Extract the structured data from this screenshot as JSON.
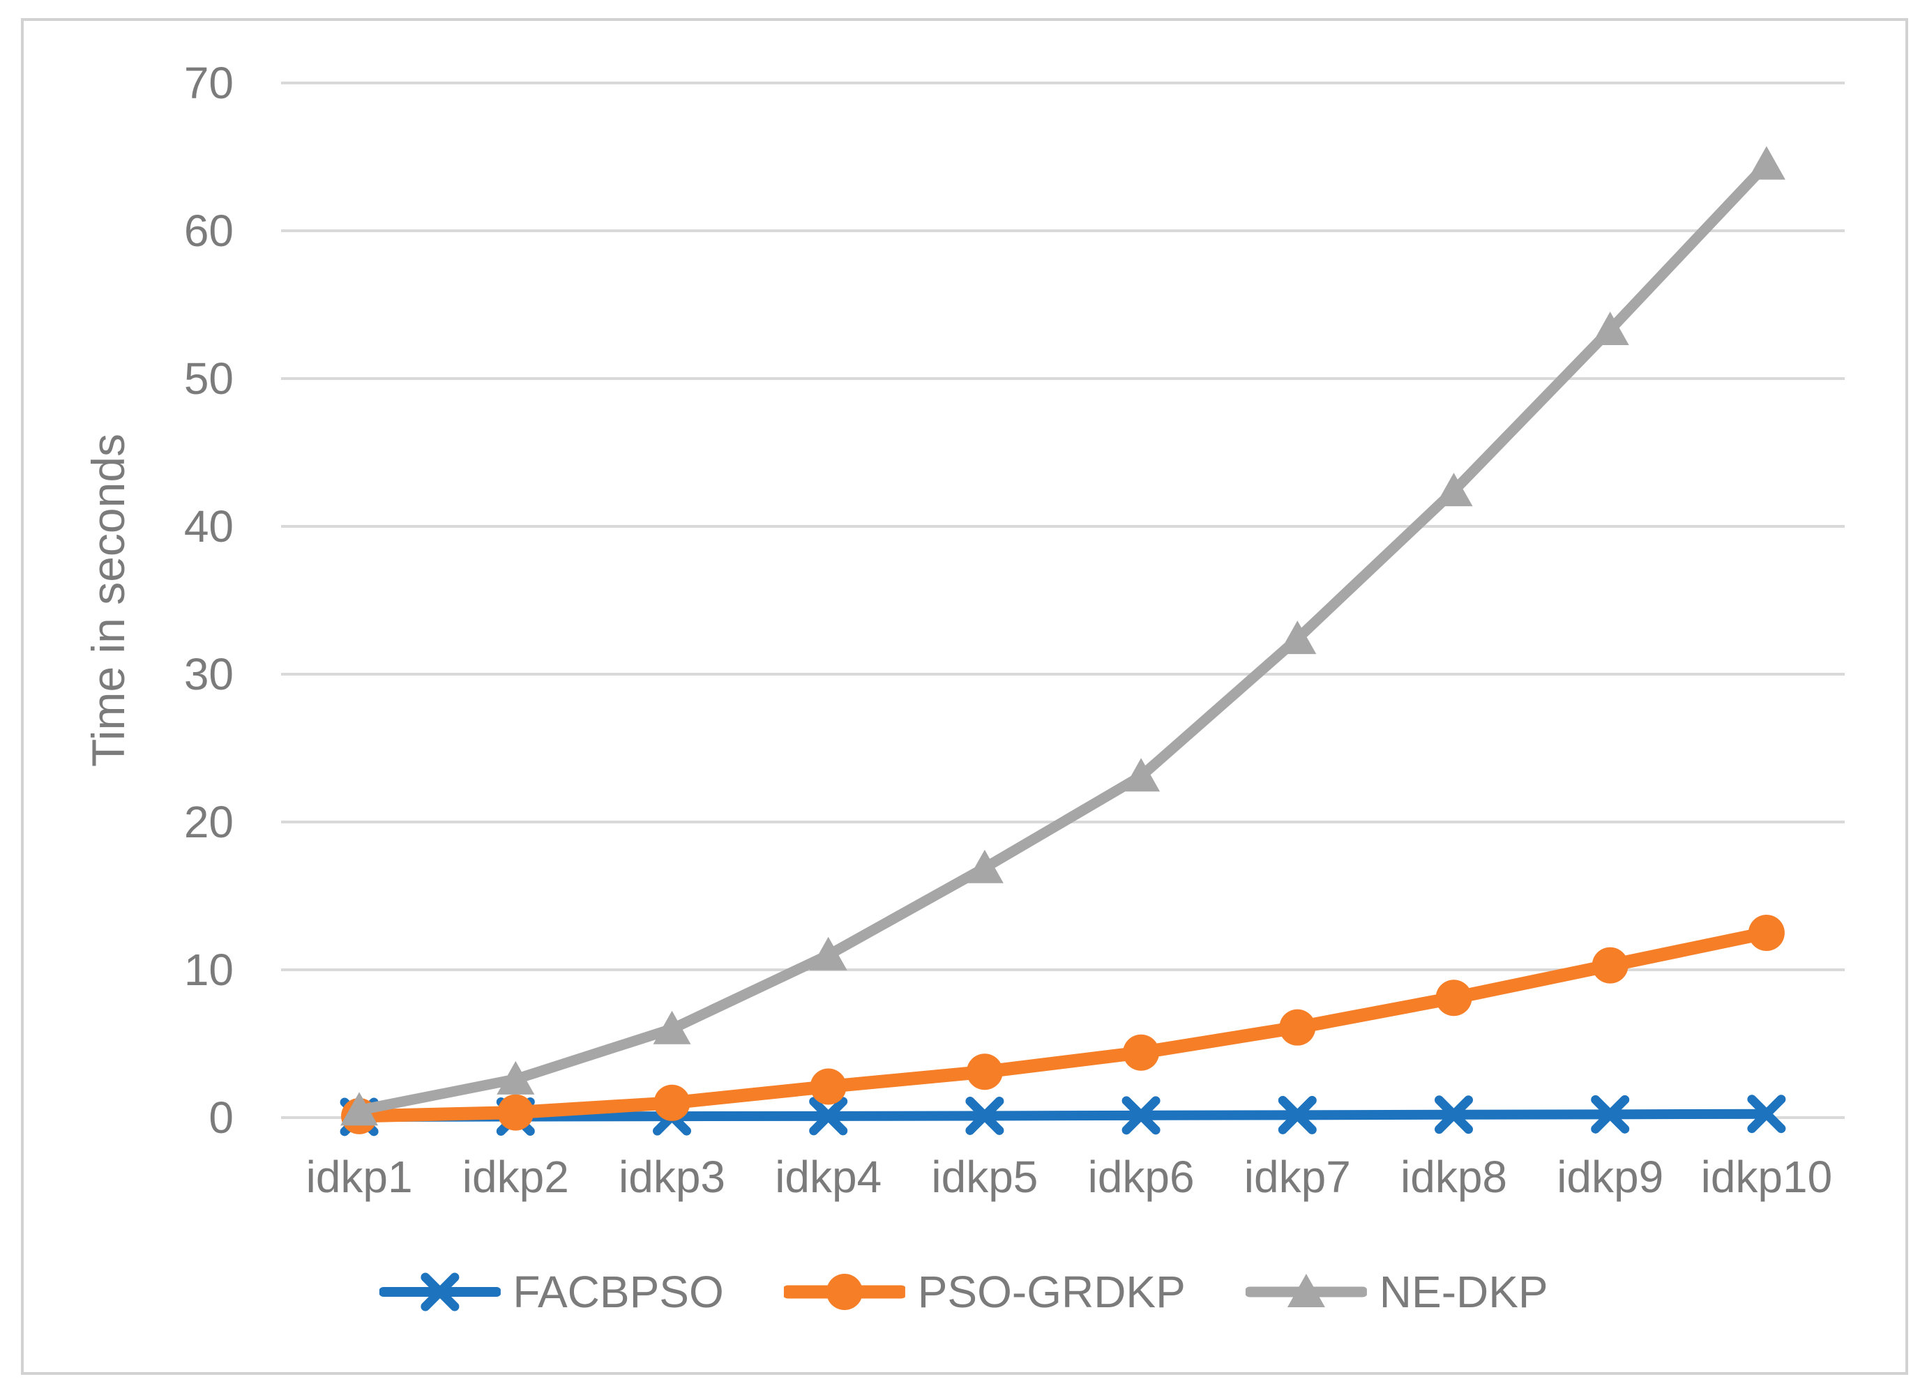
{
  "chart_data": {
    "type": "line",
    "ylabel": "Time in seconds",
    "categories": [
      "idkp1",
      "idkp2",
      "idkp3",
      "idkp4",
      "idkp5",
      "idkp6",
      "idkp7",
      "idkp8",
      "idkp9",
      "idkp10"
    ],
    "series": [
      {
        "name": "FACBPSO",
        "color": "#1e73be",
        "marker": "x",
        "values": [
          0.05,
          0.07,
          0.09,
          0.1,
          0.12,
          0.15,
          0.17,
          0.2,
          0.22,
          0.25
        ]
      },
      {
        "name": "PSO-GRDKP",
        "color": "#f57e27",
        "marker": "circle",
        "values": [
          0.1,
          0.35,
          1.0,
          2.1,
          3.1,
          4.4,
          6.1,
          8.1,
          10.3,
          12.5
        ]
      },
      {
        "name": "NE-DKP",
        "color": "#a6a6a6",
        "marker": "triangle",
        "values": [
          0.5,
          2.6,
          6.0,
          11.0,
          16.9,
          23.1,
          32.4,
          42.4,
          53.3,
          64.5
        ]
      }
    ],
    "ylim": [
      0,
      70
    ],
    "yticks": [
      0,
      10,
      20,
      30,
      40,
      50,
      60,
      70
    ],
    "grid": "horizontal",
    "gridline_color": "#d9d9d9",
    "text_color": "#7b7b7b",
    "legend_position": "bottom"
  }
}
